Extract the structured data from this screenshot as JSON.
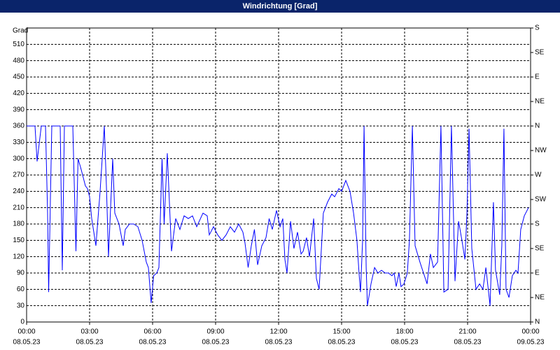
{
  "chart_data": {
    "type": "line",
    "title": "Windrichtung [Grad]",
    "y_label": "Grad",
    "x": [
      0,
      0.4,
      0.5,
      0.7,
      0.9,
      1.0,
      1.05,
      1.2,
      1.5,
      1.6,
      1.7,
      1.8,
      2.0,
      2.2,
      2.35,
      2.45,
      2.6,
      2.8,
      2.9,
      3.0,
      3.1,
      3.3,
      3.5,
      3.7,
      3.8,
      3.9,
      4.1,
      4.2,
      4.4,
      4.6,
      4.7,
      4.9,
      5.1,
      5.3,
      5.5,
      5.7,
      5.8,
      5.93,
      6.05,
      6.2,
      6.3,
      6.45,
      6.55,
      6.7,
      6.9,
      7.1,
      7.3,
      7.5,
      7.7,
      7.9,
      8.1,
      8.4,
      8.6,
      8.7,
      8.9,
      9.1,
      9.3,
      9.5,
      9.7,
      9.9,
      10.1,
      10.3,
      10.4,
      10.55,
      10.7,
      10.85,
      11.0,
      11.2,
      11.4,
      11.55,
      11.7,
      11.9,
      12.07,
      12.2,
      12.3,
      12.4,
      12.57,
      12.73,
      12.9,
      13.07,
      13.17,
      13.33,
      13.47,
      13.67,
      13.8,
      13.93,
      14.13,
      14.33,
      14.53,
      14.67,
      14.87,
      15.0,
      15.2,
      15.4,
      15.57,
      15.73,
      15.83,
      15.9,
      16.0,
      16.07,
      16.17,
      16.23,
      16.4,
      16.57,
      16.73,
      16.9,
      17.07,
      17.23,
      17.4,
      17.5,
      17.6,
      17.73,
      17.83,
      17.97,
      18.13,
      18.23,
      18.37,
      18.5,
      18.73,
      18.9,
      19.07,
      19.23,
      19.37,
      19.57,
      19.73,
      19.87,
      20.07,
      20.23,
      20.4,
      20.57,
      20.73,
      20.87,
      20.97,
      21.07,
      21.2,
      21.4,
      21.57,
      21.73,
      21.87,
      22.07,
      22.23,
      22.33,
      22.53,
      22.63,
      22.73,
      22.83,
      22.97,
      23.13,
      23.3,
      23.4,
      23.53,
      23.7,
      23.9
    ],
    "series": [
      {
        "name": "Windrichtung",
        "color": "#0000ff",
        "values": [
          360,
          360,
          295,
          360,
          360,
          200,
          55,
          360,
          360,
          360,
          95,
          360,
          360,
          360,
          130,
          300,
          280,
          250,
          245,
          230,
          190,
          140,
          240,
          360,
          250,
          120,
          300,
          200,
          180,
          140,
          170,
          180,
          180,
          175,
          150,
          110,
          100,
          35,
          85,
          90,
          100,
          300,
          180,
          310,
          130,
          190,
          170,
          195,
          190,
          195,
          175,
          200,
          195,
          160,
          175,
          160,
          150,
          160,
          175,
          165,
          180,
          165,
          145,
          100,
          140,
          170,
          105,
          140,
          155,
          190,
          170,
          205,
          175,
          190,
          115,
          90,
          185,
          135,
          165,
          125,
          130,
          155,
          120,
          190,
          80,
          60,
          200,
          220,
          235,
          230,
          245,
          240,
          260,
          240,
          200,
          150,
          90,
          55,
          150,
          360,
          100,
          30,
          70,
          100,
          90,
          95,
          90,
          90,
          85,
          90,
          65,
          90,
          65,
          70,
          90,
          150,
          360,
          140,
          110,
          90,
          70,
          125,
          100,
          110,
          360,
          55,
          60,
          360,
          75,
          185,
          150,
          115,
          200,
          355,
          135,
          60,
          70,
          60,
          100,
          30,
          220,
          95,
          50,
          140,
          355,
          60,
          45,
          85,
          95,
          90,
          170,
          195,
          210
        ]
      }
    ],
    "xlim": [
      0,
      24
    ],
    "xticks": [
      {
        "value": 0,
        "label": "00:00"
      },
      {
        "value": 3,
        "label": "03:00"
      },
      {
        "value": 6,
        "label": "06:00"
      },
      {
        "value": 9,
        "label": "09:00"
      },
      {
        "value": 12,
        "label": "12:00"
      },
      {
        "value": 15,
        "label": "15:00"
      },
      {
        "value": 18,
        "label": "18:00"
      },
      {
        "value": 21,
        "label": "21:00"
      },
      {
        "value": 24,
        "label": "00:00"
      }
    ],
    "xtick_dates": [
      "08.05.23",
      "08.05.23",
      "08.05.23",
      "08.05.23",
      "08.05.23",
      "08.05.23",
      "08.05.23",
      "08.05.23",
      "09.05.23"
    ],
    "ylim": [
      0,
      540
    ],
    "yticks": [
      0,
      30,
      60,
      90,
      120,
      150,
      180,
      210,
      240,
      270,
      300,
      330,
      360,
      390,
      420,
      450,
      480,
      510
    ],
    "y2lim": [
      0,
      540
    ],
    "y2ticks": [
      {
        "value": 0,
        "label": "N"
      },
      {
        "value": 45,
        "label": "NE"
      },
      {
        "value": 90,
        "label": "E"
      },
      {
        "value": 135,
        "label": "SE"
      },
      {
        "value": 180,
        "label": "S"
      },
      {
        "value": 225,
        "label": "SW"
      },
      {
        "value": 270,
        "label": "W"
      },
      {
        "value": 315,
        "label": "NW"
      },
      {
        "value": 360,
        "label": "N"
      },
      {
        "value": 405,
        "label": "NE"
      },
      {
        "value": 450,
        "label": "E"
      },
      {
        "value": 495,
        "label": "SE"
      },
      {
        "value": 540,
        "label": "S"
      }
    ],
    "grid": true
  }
}
